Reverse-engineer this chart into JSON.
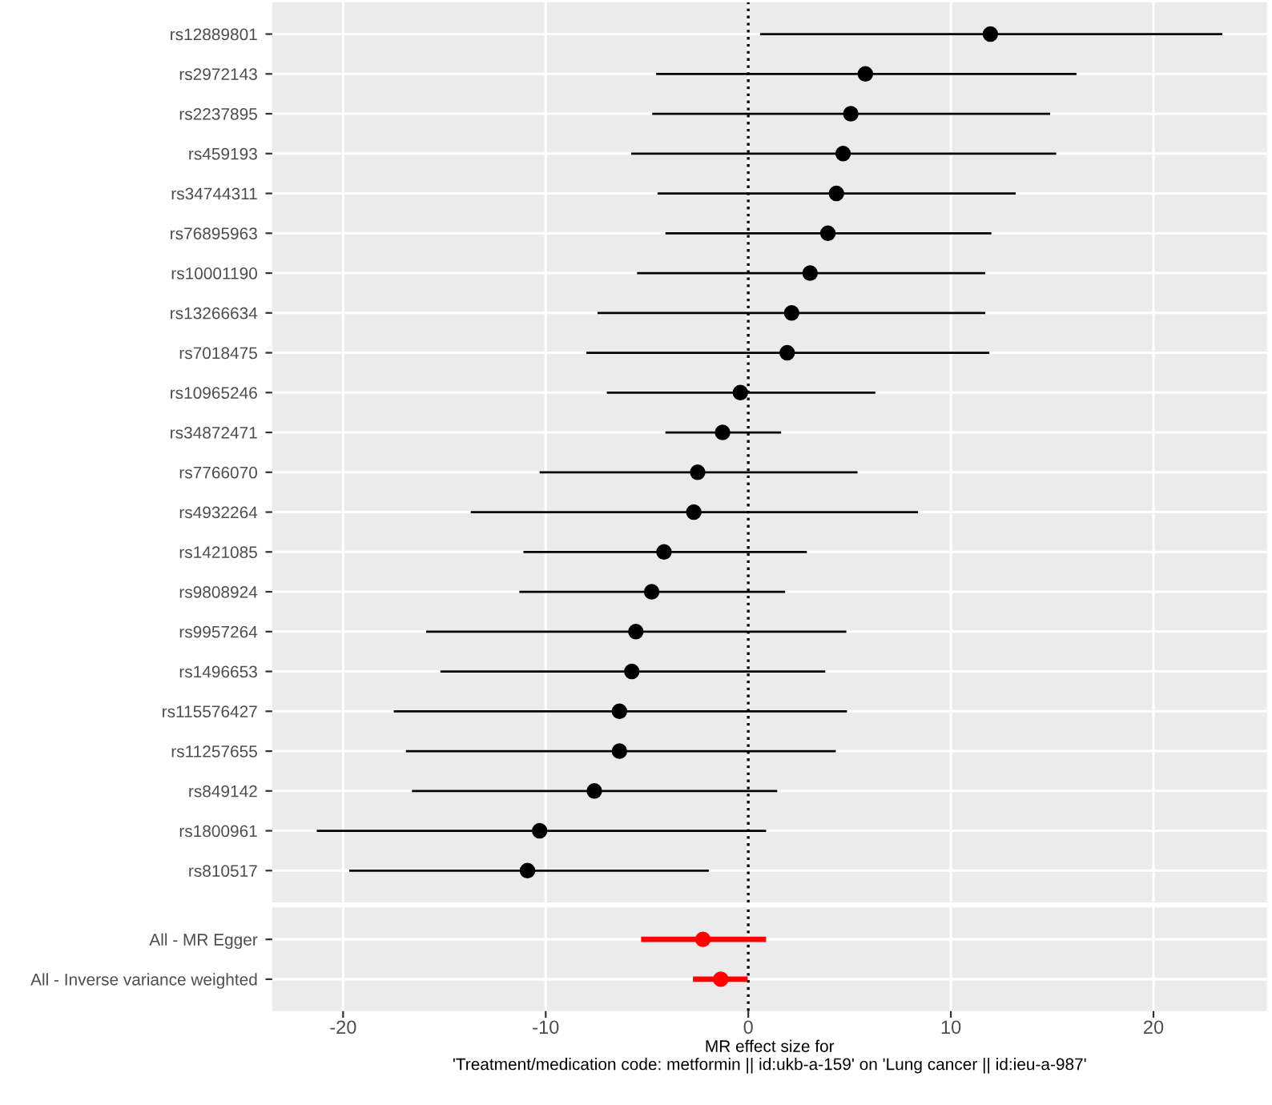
{
  "chart_data": [
    {
      "type": "scatter",
      "orientation": "horizontal",
      "categories": [
        "rs12889801",
        "rs2972143",
        "rs2237895",
        "rs459193",
        "rs34744311",
        "rs76895963",
        "rs10001190",
        "rs13266634",
        "rs7018475",
        "rs10965246",
        "rs34872471",
        "rs7766070",
        "rs4932264",
        "rs1421085",
        "rs9808924",
        "rs9957264",
        "rs1496653",
        "rs115576427",
        "rs11257655",
        "rs849142",
        "rs1800961",
        "rs810517"
      ],
      "series": [
        {
          "color": "#000000",
          "values": [
            11.95,
            5.78,
            5.06,
            4.68,
            4.35,
            3.93,
            3.05,
            2.14,
            1.92,
            -0.39,
            -1.27,
            -2.5,
            -2.69,
            -4.16,
            -4.77,
            -5.55,
            -5.75,
            -6.36,
            -6.36,
            -7.6,
            -10.3,
            -10.9
          ],
          "errors": [
            [
              0.58,
              23.4
            ],
            [
              -4.55,
              16.2
            ],
            [
              -4.74,
              14.9
            ],
            [
              -5.78,
              15.2
            ],
            [
              -4.48,
              13.2
            ],
            [
              -4.09,
              12.0
            ],
            [
              -5.49,
              11.7
            ],
            [
              -7.44,
              11.7
            ],
            [
              -7.99,
              11.9
            ],
            [
              -6.98,
              6.27
            ],
            [
              -4.09,
              1.62
            ],
            [
              -10.3,
              5.39
            ],
            [
              -13.7,
              8.38
            ],
            [
              -11.1,
              2.89
            ],
            [
              -11.3,
              1.82
            ],
            [
              -15.9,
              4.84
            ],
            [
              -15.2,
              3.8
            ],
            [
              -17.5,
              4.87
            ],
            [
              -16.9,
              4.32
            ],
            [
              -16.6,
              1.43
            ],
            [
              -21.3,
              0.88
            ],
            [
              -19.7,
              -1.95
            ]
          ]
        }
      ],
      "xlim": [
        -23.5,
        25.6
      ],
      "xticks": [
        {
          "value": -20,
          "label": null
        },
        {
          "value": -10,
          "label": null
        },
        {
          "value": 0,
          "label": null
        },
        {
          "value": 10,
          "label": null
        },
        {
          "value": 20,
          "label": null
        }
      ],
      "ref_lines": [
        {
          "axis": "x",
          "value": 0,
          "line_style": "dotted",
          "color": "#000000"
        }
      ],
      "grid": true,
      "marker": "circle",
      "tick_labels": "y"
    },
    {
      "type": "scatter",
      "orientation": "horizontal",
      "categories": [
        "All - MR Egger",
        "All - Inverse variance weighted"
      ],
      "series": [
        {
          "color": "#ff0000",
          "values": [
            -2.24,
            -1.36
          ],
          "errors": [
            [
              -5.29,
              0.88
            ],
            [
              -2.73,
              -0.03
            ]
          ]
        }
      ],
      "xlim": [
        -23.5,
        25.6
      ],
      "xticks": [
        -20,
        -10,
        0,
        10,
        20
      ],
      "ref_lines": [
        {
          "axis": "x",
          "value": 0,
          "line_style": "dotted",
          "color": "#000000"
        }
      ],
      "xlabel": "MR effect size for\n'Treatment/medication code: metformin || id:ukb-a-159' on 'Lung cancer || id:ieu-a-987'",
      "grid": true,
      "marker": "circle"
    }
  ]
}
